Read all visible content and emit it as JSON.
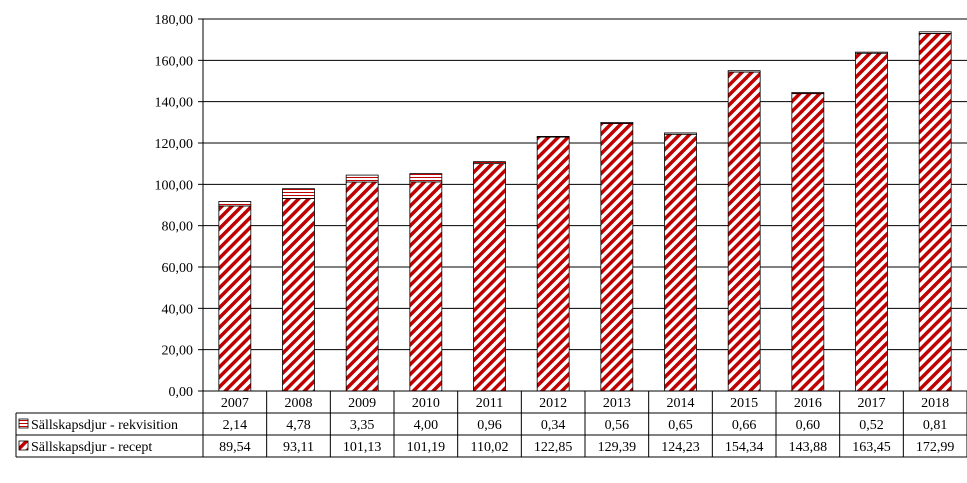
{
  "chart_data": {
    "type": "bar",
    "stacked": true,
    "categories": [
      "2007",
      "2008",
      "2009",
      "2010",
      "2011",
      "2012",
      "2013",
      "2014",
      "2015",
      "2016",
      "2017",
      "2018"
    ],
    "series": [
      {
        "name": "Sällskapsdjur - recept",
        "values": [
          89.54,
          93.11,
          101.13,
          101.19,
          110.02,
          122.85,
          129.39,
          124.23,
          154.34,
          143.88,
          163.45,
          172.99
        ],
        "labels": [
          "89,54",
          "93,11",
          "101,13",
          "101,19",
          "110,02",
          "122,85",
          "129,39",
          "124,23",
          "154,34",
          "143,88",
          "163,45",
          "172,99"
        ],
        "pattern": "red-diagonal-hatch",
        "color": "#c00000"
      },
      {
        "name": "Sällskapsdjur - rekvisition",
        "values": [
          2.14,
          4.78,
          3.35,
          4.0,
          0.96,
          0.34,
          0.56,
          0.65,
          0.66,
          0.6,
          0.52,
          0.81
        ],
        "labels": [
          "2,14",
          "4,78",
          "3,35",
          "4,00",
          "0,96",
          "0,34",
          "0,56",
          "0,65",
          "0,66",
          "0,60",
          "0,52",
          "0,81"
        ],
        "pattern": "red-horizontal-lines",
        "color": "#c00000"
      }
    ],
    "ylim": [
      0,
      180
    ],
    "yticks": [
      "0,00",
      "20,00",
      "40,00",
      "60,00",
      "80,00",
      "100,00",
      "120,00",
      "140,00",
      "160,00",
      "180,00"
    ],
    "grid": true,
    "legend": "data-table-left"
  }
}
